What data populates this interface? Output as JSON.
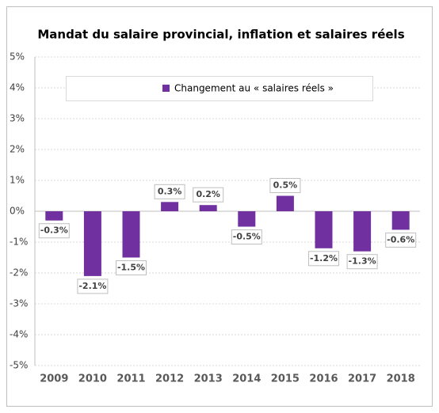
{
  "chart_data": {
    "type": "bar",
    "title": "Mandat du salaire provincial, inflation et salaires réels",
    "categories": [
      "2009",
      "2010",
      "2011",
      "2012",
      "2013",
      "2014",
      "2015",
      "2016",
      "2017",
      "2018"
    ],
    "series": [
      {
        "name": "Changement au « salaires réels »",
        "color": "#7030a0",
        "values": [
          -0.3,
          -2.1,
          -1.5,
          0.3,
          0.2,
          -0.5,
          0.5,
          -1.2,
          -1.3,
          -0.6
        ],
        "value_labels": [
          "-0.3%",
          "-2.1%",
          "-1.5%",
          "0.3%",
          "0.2%",
          "-0.5%",
          "0.5%",
          "-1.2%",
          "-1.3%",
          "-0.6%"
        ]
      }
    ],
    "ylim": [
      -5,
      5
    ],
    "yticks": [
      {
        "value": 5,
        "label": "5%"
      },
      {
        "value": 4,
        "label": "4%"
      },
      {
        "value": 3,
        "label": "3%"
      },
      {
        "value": 2,
        "label": "2%"
      },
      {
        "value": 1,
        "label": "1%"
      },
      {
        "value": 0,
        "label": "0%"
      },
      {
        "value": -1,
        "label": "-1%"
      },
      {
        "value": -2,
        "label": "-2%"
      },
      {
        "value": -3,
        "label": "-3%"
      },
      {
        "value": -4,
        "label": "-4%"
      },
      {
        "value": -5,
        "label": "-5%"
      }
    ],
    "grid": true,
    "legend": "top"
  }
}
